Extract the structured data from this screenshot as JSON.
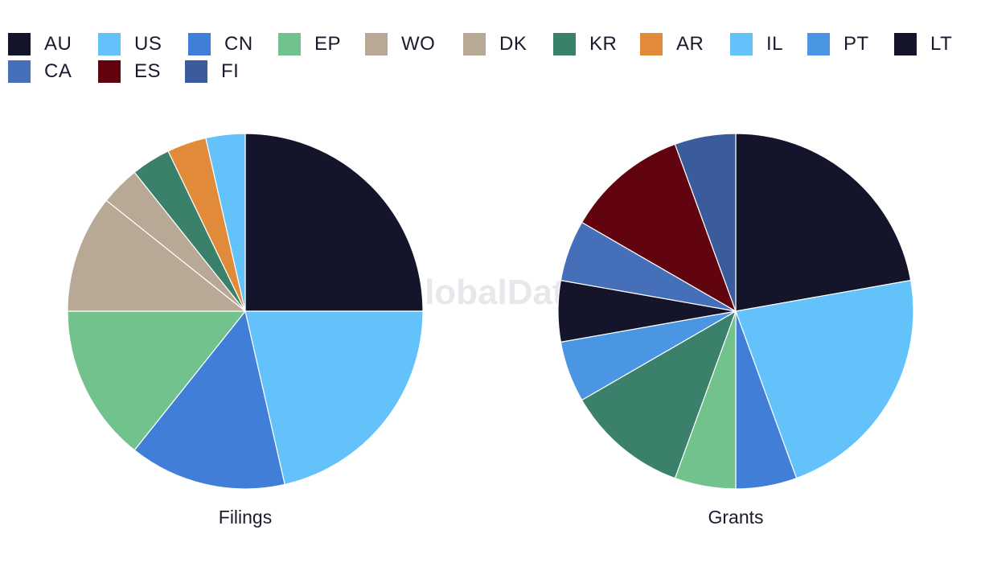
{
  "legend": {
    "items": [
      {
        "label": "AU",
        "color": "#14142a"
      },
      {
        "label": "US",
        "color": "#62c2f9"
      },
      {
        "label": "CN",
        "color": "#417ed8"
      },
      {
        "label": "EP",
        "color": "#72c28e"
      },
      {
        "label": "WO",
        "color": "#b7a995"
      },
      {
        "label": "DK",
        "color": "#b7a995"
      },
      {
        "label": "KR",
        "color": "#3a806a"
      },
      {
        "label": "AR",
        "color": "#e18a39"
      },
      {
        "label": "IL",
        "color": "#62c2f9"
      },
      {
        "label": "PT",
        "color": "#4b96e3"
      },
      {
        "label": "LT",
        "color": "#14142a"
      },
      {
        "label": "CA",
        "color": "#4570b9"
      },
      {
        "label": "ES",
        "color": "#62040f"
      },
      {
        "label": "FI",
        "color": "#3b5c9c"
      }
    ]
  },
  "watermark": "GlobalData",
  "chart_data": [
    {
      "type": "pie",
      "title": "Filings",
      "slices": [
        {
          "label": "AU",
          "value": 7,
          "color": "#14142a"
        },
        {
          "label": "US",
          "value": 6,
          "color": "#62c2f9"
        },
        {
          "label": "CN",
          "value": 4,
          "color": "#417ed8"
        },
        {
          "label": "EP",
          "value": 4,
          "color": "#72c28e"
        },
        {
          "label": "WO",
          "value": 3,
          "color": "#b7a995"
        },
        {
          "label": "DK",
          "value": 1,
          "color": "#b7a995"
        },
        {
          "label": "KR",
          "value": 1,
          "color": "#3a806a"
        },
        {
          "label": "AR",
          "value": 1,
          "color": "#e18a39"
        },
        {
          "label": "IL",
          "value": 1,
          "color": "#62c2f9"
        }
      ]
    },
    {
      "type": "pie",
      "title": "Grants",
      "slices": [
        {
          "label": "AU",
          "value": 4,
          "color": "#14142a"
        },
        {
          "label": "US",
          "value": 4,
          "color": "#62c2f9"
        },
        {
          "label": "CN",
          "value": 1,
          "color": "#417ed8"
        },
        {
          "label": "EP",
          "value": 1,
          "color": "#72c28e"
        },
        {
          "label": "KR",
          "value": 2,
          "color": "#3a806a"
        },
        {
          "label": "PT",
          "value": 1,
          "color": "#4b96e3"
        },
        {
          "label": "LT",
          "value": 1,
          "color": "#14142a"
        },
        {
          "label": "CA",
          "value": 1,
          "color": "#4570b9"
        },
        {
          "label": "ES",
          "value": 2,
          "color": "#62040f"
        },
        {
          "label": "FI",
          "value": 1,
          "color": "#3b5c9c"
        }
      ]
    }
  ]
}
